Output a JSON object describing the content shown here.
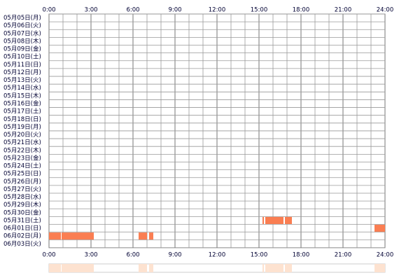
{
  "chart_data": {
    "type": "timeline",
    "categories": [
      "05月05日(月)",
      "05月06日(火)",
      "05月07日(水)",
      "05月08日(木)",
      "05月09日(金)",
      "05月10日(土)",
      "05月11日(日)",
      "05月12日(月)",
      "05月13日(火)",
      "05月14日(水)",
      "05月15日(木)",
      "05月16日(金)",
      "05月17日(土)",
      "05月18日(日)",
      "05月19日(月)",
      "05月20日(火)",
      "05月21日(水)",
      "05月22日(木)",
      "05月23日(金)",
      "05月24日(土)",
      "05月25日(日)",
      "05月26日(月)",
      "05月27日(火)",
      "05月28日(水)",
      "05月29日(木)",
      "05月30日(金)",
      "05月31日(土)",
      "06月01日(日)",
      "06月02日(月)",
      "06月03日(火)"
    ],
    "values": [
      [],
      [],
      [],
      [],
      [],
      [],
      [],
      [],
      [],
      [],
      [],
      [],
      [],
      [],
      [],
      [],
      [],
      [],
      [],
      [],
      [],
      [],
      [],
      [],
      [],
      [],
      [
        [
          15.25,
          15.35
        ],
        [
          15.45,
          16.75
        ],
        [
          16.85,
          17.35
        ]
      ],
      [
        [
          23.25,
          24
        ]
      ],
      [
        [
          0,
          0.85
        ],
        [
          0.9,
          3.2
        ],
        [
          6.4,
          7
        ],
        [
          7.15,
          7.45
        ]
      ],
      []
    ],
    "color": "#fa7e52",
    "summary_color": "#fde2d0",
    "xlim": [
      0,
      24
    ],
    "xticks": [
      {
        "value": 0,
        "label": "0:00"
      },
      {
        "value": 3,
        "label": "3:00"
      },
      {
        "value": 6,
        "label": "6:00"
      },
      {
        "value": 9,
        "label": "9:00"
      },
      {
        "value": 12,
        "label": "12:00"
      },
      {
        "value": 15,
        "label": "15:00"
      },
      {
        "value": 18,
        "label": "18:00"
      },
      {
        "value": 21,
        "label": "21:00"
      },
      {
        "value": 24,
        "label": "24:00"
      }
    ],
    "grid": true
  }
}
